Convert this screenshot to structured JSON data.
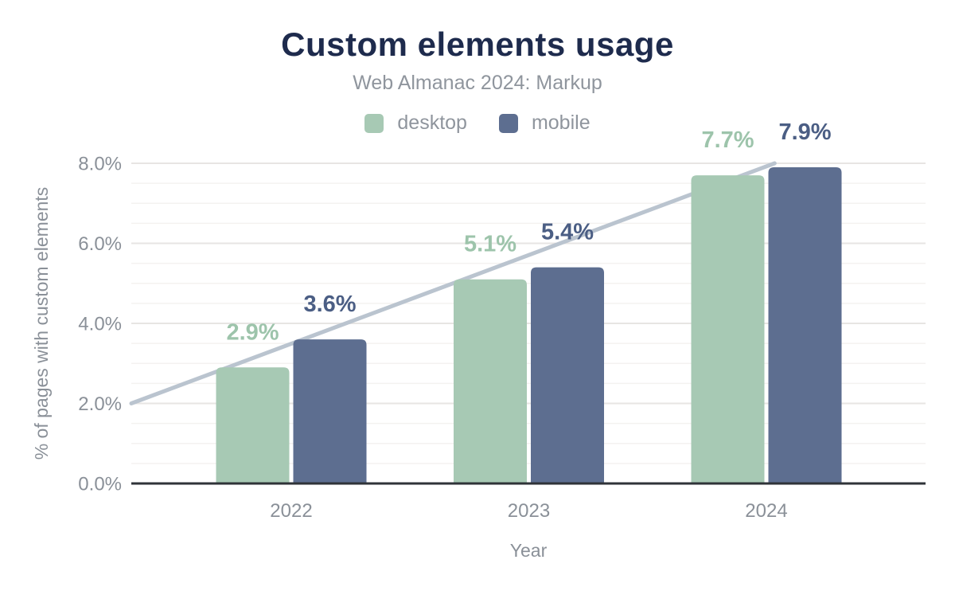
{
  "header": {
    "title": "Custom elements usage",
    "subtitle": "Web Almanac 2024: Markup"
  },
  "chart_data": {
    "type": "bar",
    "title": "Custom elements usage",
    "subtitle": "Web Almanac 2024: Markup",
    "xlabel": "Year",
    "ylabel": "% of pages with custom elements",
    "categories": [
      "2022",
      "2023",
      "2024"
    ],
    "series": [
      {
        "name": "desktop",
        "values": [
          2.9,
          5.1,
          7.7
        ],
        "labels": [
          "2.9%",
          "5.1%",
          "7.7%"
        ],
        "color": "#a7c9b4",
        "label_color": "#9dc4ab"
      },
      {
        "name": "mobile",
        "values": [
          3.6,
          5.4,
          7.9
        ],
        "labels": [
          "3.6%",
          "5.4%",
          "7.9%"
        ],
        "color": "#5d6e90",
        "label_color": "#4b5e84"
      }
    ],
    "ylim": [
      0,
      8
    ],
    "yticks": [
      {
        "value": 0,
        "label": "0.0%"
      },
      {
        "value": 2,
        "label": "2.0%"
      },
      {
        "value": 4,
        "label": "4.0%"
      },
      {
        "value": 6,
        "label": "6.0%"
      },
      {
        "value": 8,
        "label": "8.0%"
      }
    ],
    "minor_tick_step": 0.5,
    "grid": "on",
    "legend_position": "top",
    "trendline": {
      "start_value": 2.0,
      "end_value": 8.0,
      "end_x_fraction": 0.81,
      "color": "#bac4cf"
    }
  },
  "colors": {
    "background": "#ffffff",
    "title": "#1e2b4d",
    "subtitle": "#8f959d",
    "axis_text": "#8a9098",
    "axis_line": "#2f3338",
    "grid_major": "#e7e5e3",
    "grid_minor": "#f4f2f0"
  }
}
